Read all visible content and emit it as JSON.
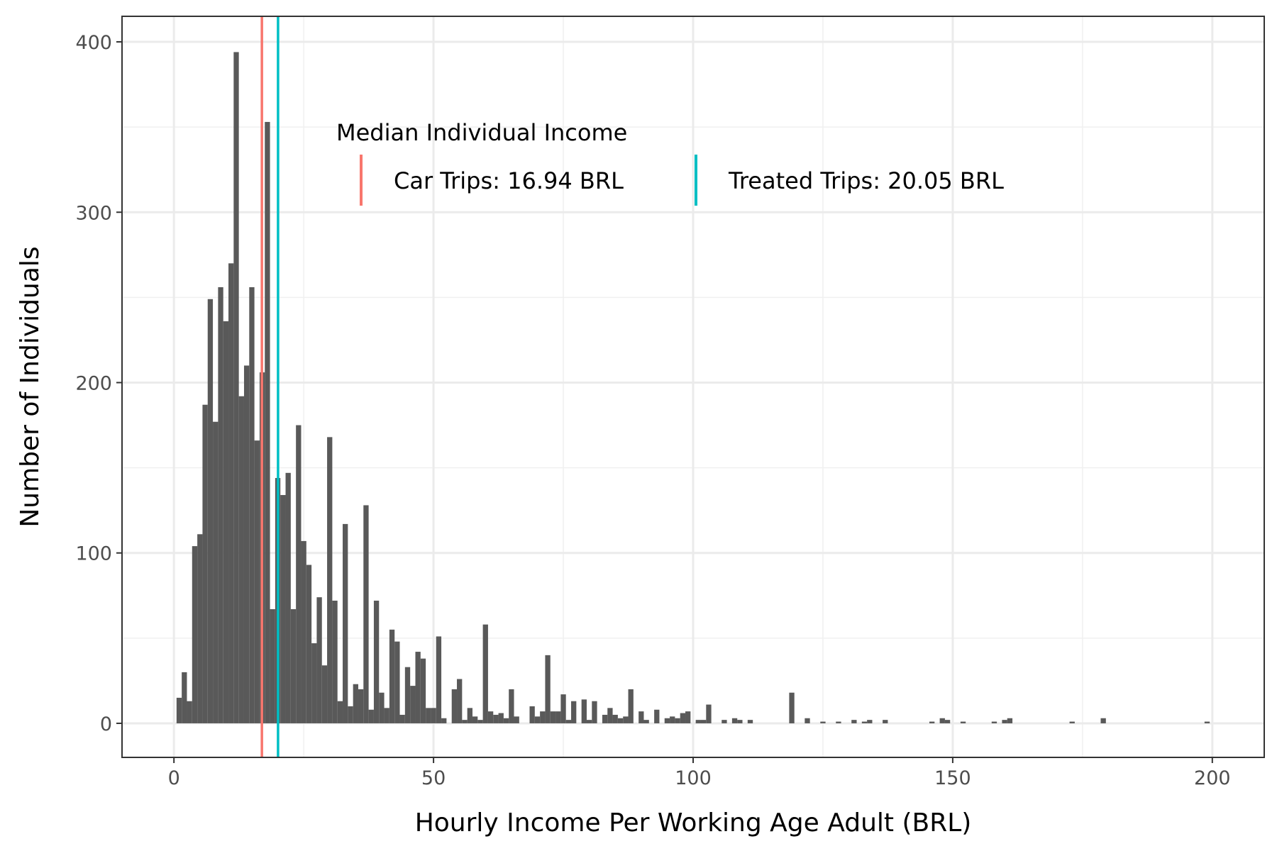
{
  "chart_data": {
    "type": "bar",
    "title": "",
    "xlabel": "Hourly Income Per Working Age Adult (BRL)",
    "ylabel": "Number of Individuals",
    "xlim": [
      -10,
      210
    ],
    "ylim": [
      -20,
      415
    ],
    "x_ticks": [
      0,
      50,
      100,
      150,
      200
    ],
    "y_ticks": [
      0,
      100,
      200,
      300,
      400
    ],
    "grid": true,
    "bin_width": 1,
    "bar_color": "#595959",
    "bins": [
      {
        "x": 1,
        "count": 15
      },
      {
        "x": 2,
        "count": 30
      },
      {
        "x": 3,
        "count": 13
      },
      {
        "x": 4,
        "count": 104
      },
      {
        "x": 5,
        "count": 111
      },
      {
        "x": 6,
        "count": 187
      },
      {
        "x": 7,
        "count": 249
      },
      {
        "x": 8,
        "count": 177
      },
      {
        "x": 9,
        "count": 256
      },
      {
        "x": 10,
        "count": 236
      },
      {
        "x": 11,
        "count": 270
      },
      {
        "x": 12,
        "count": 394
      },
      {
        "x": 13,
        "count": 192
      },
      {
        "x": 14,
        "count": 210
      },
      {
        "x": 15,
        "count": 256
      },
      {
        "x": 16,
        "count": 166
      },
      {
        "x": 17,
        "count": 206
      },
      {
        "x": 18,
        "count": 353
      },
      {
        "x": 19,
        "count": 67
      },
      {
        "x": 20,
        "count": 144
      },
      {
        "x": 21,
        "count": 134
      },
      {
        "x": 22,
        "count": 147
      },
      {
        "x": 23,
        "count": 67
      },
      {
        "x": 24,
        "count": 175
      },
      {
        "x": 25,
        "count": 107
      },
      {
        "x": 26,
        "count": 93
      },
      {
        "x": 27,
        "count": 47
      },
      {
        "x": 28,
        "count": 74
      },
      {
        "x": 29,
        "count": 34
      },
      {
        "x": 30,
        "count": 168
      },
      {
        "x": 31,
        "count": 72
      },
      {
        "x": 32,
        "count": 13
      },
      {
        "x": 33,
        "count": 117
      },
      {
        "x": 34,
        "count": 10
      },
      {
        "x": 35,
        "count": 23
      },
      {
        "x": 36,
        "count": 20
      },
      {
        "x": 37,
        "count": 128
      },
      {
        "x": 38,
        "count": 8
      },
      {
        "x": 39,
        "count": 72
      },
      {
        "x": 40,
        "count": 18
      },
      {
        "x": 41,
        "count": 9
      },
      {
        "x": 42,
        "count": 55
      },
      {
        "x": 43,
        "count": 48
      },
      {
        "x": 44,
        "count": 5
      },
      {
        "x": 45,
        "count": 33
      },
      {
        "x": 46,
        "count": 22
      },
      {
        "x": 47,
        "count": 42
      },
      {
        "x": 48,
        "count": 38
      },
      {
        "x": 49,
        "count": 9
      },
      {
        "x": 50,
        "count": 9
      },
      {
        "x": 51,
        "count": 51
      },
      {
        "x": 52,
        "count": 3
      },
      {
        "x": 54,
        "count": 20
      },
      {
        "x": 55,
        "count": 26
      },
      {
        "x": 56,
        "count": 2
      },
      {
        "x": 57,
        "count": 9
      },
      {
        "x": 58,
        "count": 4
      },
      {
        "x": 59,
        "count": 2
      },
      {
        "x": 60,
        "count": 58
      },
      {
        "x": 61,
        "count": 7
      },
      {
        "x": 62,
        "count": 5
      },
      {
        "x": 63,
        "count": 6
      },
      {
        "x": 64,
        "count": 3
      },
      {
        "x": 65,
        "count": 20
      },
      {
        "x": 66,
        "count": 4
      },
      {
        "x": 69,
        "count": 10
      },
      {
        "x": 70,
        "count": 4
      },
      {
        "x": 71,
        "count": 7
      },
      {
        "x": 72,
        "count": 40
      },
      {
        "x": 73,
        "count": 7
      },
      {
        "x": 74,
        "count": 7
      },
      {
        "x": 75,
        "count": 17
      },
      {
        "x": 76,
        "count": 2
      },
      {
        "x": 77,
        "count": 13
      },
      {
        "x": 79,
        "count": 14
      },
      {
        "x": 80,
        "count": 2
      },
      {
        "x": 81,
        "count": 13
      },
      {
        "x": 83,
        "count": 5
      },
      {
        "x": 84,
        "count": 9
      },
      {
        "x": 85,
        "count": 5
      },
      {
        "x": 86,
        "count": 3
      },
      {
        "x": 87,
        "count": 4
      },
      {
        "x": 88,
        "count": 20
      },
      {
        "x": 90,
        "count": 7
      },
      {
        "x": 91,
        "count": 2
      },
      {
        "x": 93,
        "count": 8
      },
      {
        "x": 95,
        "count": 3
      },
      {
        "x": 96,
        "count": 4
      },
      {
        "x": 97,
        "count": 3
      },
      {
        "x": 98,
        "count": 6
      },
      {
        "x": 99,
        "count": 7
      },
      {
        "x": 101,
        "count": 2
      },
      {
        "x": 102,
        "count": 2
      },
      {
        "x": 103,
        "count": 11
      },
      {
        "x": 106,
        "count": 2
      },
      {
        "x": 108,
        "count": 3
      },
      {
        "x": 109,
        "count": 2
      },
      {
        "x": 111,
        "count": 2
      },
      {
        "x": 119,
        "count": 18
      },
      {
        "x": 122,
        "count": 3
      },
      {
        "x": 125,
        "count": 1
      },
      {
        "x": 128,
        "count": 1
      },
      {
        "x": 131,
        "count": 2
      },
      {
        "x": 133,
        "count": 1
      },
      {
        "x": 134,
        "count": 2
      },
      {
        "x": 137,
        "count": 2
      },
      {
        "x": 146,
        "count": 1
      },
      {
        "x": 148,
        "count": 3
      },
      {
        "x": 149,
        "count": 2
      },
      {
        "x": 152,
        "count": 1
      },
      {
        "x": 158,
        "count": 1
      },
      {
        "x": 160,
        "count": 2
      },
      {
        "x": 161,
        "count": 3
      },
      {
        "x": 173,
        "count": 1
      },
      {
        "x": 179,
        "count": 3
      },
      {
        "x": 199,
        "count": 1
      }
    ],
    "reference_lines": [
      {
        "label": "Car Trips: 16.94 BRL",
        "x": 16.94,
        "color": "#F8766D"
      },
      {
        "label": "Treated Trips: 20.05 BRL",
        "x": 20.05,
        "color": "#00BFC4"
      }
    ],
    "legend": {
      "title": "Median Individual Income",
      "placement": "top-center inside plot"
    }
  }
}
